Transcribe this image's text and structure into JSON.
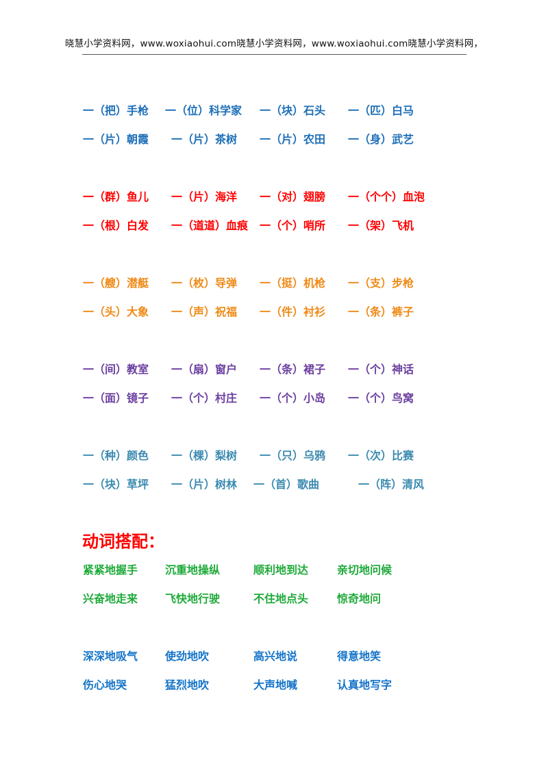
{
  "header": {
    "text": "晓慧小学资料网，www.woxiaohui.com晓慧小学资料网，www.woxiaohui.com晓慧小学资料网，"
  },
  "colors": {
    "blue": "#1d6fb8",
    "red": "#ff0000",
    "orange": "#ef8a17",
    "purple": "#6b3fa0",
    "teal": "#3b8ab0",
    "green": "#1faa3a",
    "blue2": "#1574c9"
  },
  "groups": [
    {
      "rows": [
        [
          "一（把）手枪",
          "一（位）科学家",
          "一（块）石头",
          "一（匹）白马"
        ],
        [
          "一（片）朝霞",
          "一（片）茶树",
          "一（片）农田",
          "一（身）武艺"
        ]
      ]
    },
    {
      "rows": [
        [
          "一（群）鱼儿",
          "一（片）海洋",
          "一（对）翅膀",
          "一（个个）血泡"
        ],
        [
          "一（根）白发",
          "一（道道）血痕",
          "一（个）哨所",
          "一（架）飞机"
        ]
      ]
    },
    {
      "rows": [
        [
          "一（艘）潜艇",
          "一（枚）导弹",
          "一（挺）机枪",
          "一（支）步枪"
        ],
        [
          "一（头）大象",
          "一（声）祝福",
          "一（件）衬衫",
          "一（条）裤子"
        ]
      ]
    },
    {
      "rows": [
        [
          "一（间）教室",
          "一（扇）窗户",
          "一（条）裙子",
          "一（个）神话"
        ],
        [
          "一（面）镜子",
          "一（个）村庄",
          "一（个）小岛",
          "一（个）鸟窝"
        ]
      ]
    },
    {
      "rows": [
        [
          "一（种）颜色",
          "一（棵）梨树",
          "一（只）乌鸦",
          "一（次）比赛"
        ],
        [
          "一（块）草坪",
          "一（片）树林",
          "一（首）歌曲",
          "一（阵）清风"
        ]
      ]
    }
  ],
  "verb_section": {
    "title": "动词搭配：",
    "groups": [
      {
        "rows": [
          [
            "紧紧地握手",
            "沉重地操纵",
            "顺利地到达",
            "亲切地问候"
          ],
          [
            "兴奋地走来",
            "飞快地行驶",
            "不住地点头",
            "惊奇地问"
          ]
        ]
      },
      {
        "rows": [
          [
            "深深地吸气",
            "使劲地吹",
            "高兴地说",
            "得意地笑"
          ],
          [
            "伤心地哭",
            "猛烈地吹",
            "大声地喊",
            "认真地写字"
          ]
        ]
      }
    ]
  }
}
